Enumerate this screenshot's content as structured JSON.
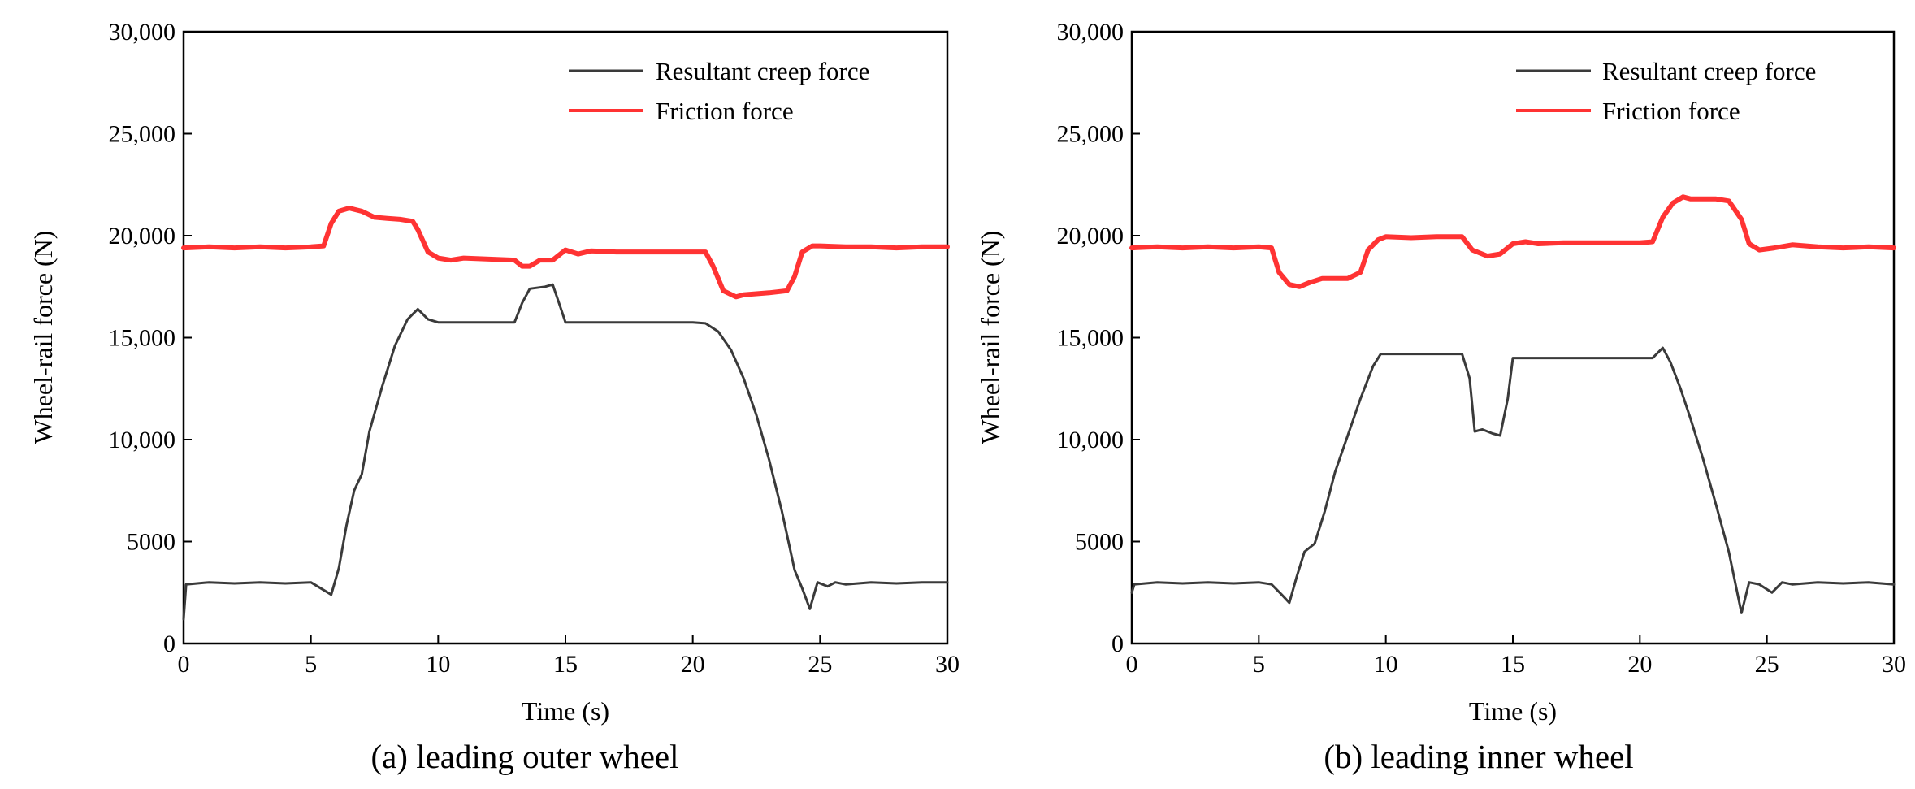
{
  "colors": {
    "creep": "#3a3a3a",
    "friction": "#ff3333",
    "axis": "#000000"
  },
  "chart_data": [
    {
      "type": "line",
      "caption": "(a) leading outer wheel",
      "xlabel": "Time (s)",
      "ylabel": "Wheel-rail force (N)",
      "xlim": [
        0,
        30
      ],
      "ylim": [
        0,
        30000
      ],
      "x_ticks": [
        0,
        5,
        10,
        15,
        20,
        25,
        30
      ],
      "x_tick_labels": [
        "0",
        "5",
        "10",
        "15",
        "20",
        "25",
        "30"
      ],
      "y_ticks": [
        0,
        5000,
        10000,
        15000,
        20000,
        25000,
        30000
      ],
      "y_tick_labels": [
        "0",
        "5000",
        "10,000",
        "15,000",
        "20,000",
        "25,000",
        "30,000"
      ],
      "legend": [
        "Resultant creep force",
        "Friction force"
      ],
      "legend_position": "top-right",
      "series": [
        {
          "name": "Resultant creep force",
          "color": "#3a3a3a",
          "points": [
            [
              0,
              1200
            ],
            [
              0.1,
              2900
            ],
            [
              1,
              3000
            ],
            [
              2,
              2950
            ],
            [
              3,
              3000
            ],
            [
              4,
              2950
            ],
            [
              5,
              3000
            ],
            [
              5.8,
              2400
            ],
            [
              6.1,
              3700
            ],
            [
              6.4,
              5800
            ],
            [
              6.7,
              7500
            ],
            [
              7,
              8300
            ],
            [
              7.3,
              10400
            ],
            [
              7.8,
              12600
            ],
            [
              8.3,
              14600
            ],
            [
              8.8,
              15900
            ],
            [
              9.2,
              16400
            ],
            [
              9.6,
              15900
            ],
            [
              10,
              15750
            ],
            [
              11,
              15750
            ],
            [
              12,
              15750
            ],
            [
              13,
              15750
            ],
            [
              13.3,
              16700
            ],
            [
              13.6,
              17400
            ],
            [
              14.2,
              17500
            ],
            [
              14.5,
              17600
            ],
            [
              14.8,
              16500
            ],
            [
              15,
              15750
            ],
            [
              16,
              15750
            ],
            [
              17,
              15750
            ],
            [
              18,
              15750
            ],
            [
              19,
              15750
            ],
            [
              20,
              15750
            ],
            [
              20.5,
              15700
            ],
            [
              21,
              15300
            ],
            [
              21.5,
              14400
            ],
            [
              22,
              13000
            ],
            [
              22.5,
              11200
            ],
            [
              23,
              9000
            ],
            [
              23.5,
              6500
            ],
            [
              24,
              3600
            ],
            [
              24.3,
              2700
            ],
            [
              24.6,
              1700
            ],
            [
              24.9,
              3000
            ],
            [
              25.3,
              2800
            ],
            [
              25.6,
              3000
            ],
            [
              26,
              2900
            ],
            [
              27,
              3000
            ],
            [
              28,
              2950
            ],
            [
              29,
              3000
            ],
            [
              30,
              3000
            ]
          ]
        },
        {
          "name": "Friction force",
          "color": "#ff3333",
          "points": [
            [
              0,
              19400
            ],
            [
              1,
              19450
            ],
            [
              2,
              19400
            ],
            [
              3,
              19450
            ],
            [
              4,
              19400
            ],
            [
              5,
              19450
            ],
            [
              5.5,
              19500
            ],
            [
              5.8,
              20600
            ],
            [
              6.1,
              21200
            ],
            [
              6.5,
              21350
            ],
            [
              7,
              21200
            ],
            [
              7.5,
              20900
            ],
            [
              8,
              20850
            ],
            [
              8.5,
              20800
            ],
            [
              9,
              20700
            ],
            [
              9.2,
              20300
            ],
            [
              9.6,
              19200
            ],
            [
              10,
              18900
            ],
            [
              10.5,
              18800
            ],
            [
              11,
              18900
            ],
            [
              12,
              18850
            ],
            [
              13,
              18800
            ],
            [
              13.3,
              18500
            ],
            [
              13.6,
              18500
            ],
            [
              14,
              18800
            ],
            [
              14.5,
              18800
            ],
            [
              15,
              19300
            ],
            [
              15.5,
              19100
            ],
            [
              16,
              19250
            ],
            [
              17,
              19200
            ],
            [
              18,
              19200
            ],
            [
              19,
              19200
            ],
            [
              20,
              19200
            ],
            [
              20.5,
              19200
            ],
            [
              20.8,
              18500
            ],
            [
              21.2,
              17300
            ],
            [
              21.7,
              17000
            ],
            [
              22,
              17100
            ],
            [
              23,
              17200
            ],
            [
              23.7,
              17300
            ],
            [
              24,
              18000
            ],
            [
              24.3,
              19200
            ],
            [
              24.7,
              19500
            ],
            [
              25,
              19500
            ],
            [
              26,
              19450
            ],
            [
              27,
              19450
            ],
            [
              28,
              19400
            ],
            [
              29,
              19450
            ],
            [
              30,
              19450
            ]
          ]
        }
      ]
    },
    {
      "type": "line",
      "caption": "(b) leading inner wheel",
      "xlabel": "Time (s)",
      "ylabel": "Wheel-rail force (N)",
      "xlim": [
        0,
        30
      ],
      "ylim": [
        0,
        30000
      ],
      "x_ticks": [
        0,
        5,
        10,
        15,
        20,
        25,
        30
      ],
      "x_tick_labels": [
        "0",
        "5",
        "10",
        "15",
        "20",
        "25",
        "30"
      ],
      "y_ticks": [
        0,
        5000,
        10000,
        15000,
        20000,
        25000,
        30000
      ],
      "y_tick_labels": [
        "0",
        "5000",
        "10,000",
        "15,000",
        "20,000",
        "25,000",
        "30,000"
      ],
      "legend": [
        "Resultant creep force",
        "Friction force"
      ],
      "legend_position": "top-right",
      "series": [
        {
          "name": "Resultant creep force",
          "color": "#3a3a3a",
          "points": [
            [
              0,
              2500
            ],
            [
              0.1,
              2900
            ],
            [
              1,
              3000
            ],
            [
              2,
              2950
            ],
            [
              3,
              3000
            ],
            [
              4,
              2950
            ],
            [
              5,
              3000
            ],
            [
              5.5,
              2900
            ],
            [
              5.9,
              2400
            ],
            [
              6.2,
              2000
            ],
            [
              6.5,
              3300
            ],
            [
              6.8,
              4500
            ],
            [
              7.2,
              4900
            ],
            [
              7.6,
              6500
            ],
            [
              8,
              8400
            ],
            [
              8.5,
              10200
            ],
            [
              9,
              12000
            ],
            [
              9.5,
              13600
            ],
            [
              9.8,
              14200
            ],
            [
              10,
              14200
            ],
            [
              11,
              14200
            ],
            [
              12,
              14200
            ],
            [
              12.5,
              14200
            ],
            [
              13,
              14200
            ],
            [
              13.3,
              13000
            ],
            [
              13.5,
              10400
            ],
            [
              13.8,
              10500
            ],
            [
              14.2,
              10300
            ],
            [
              14.5,
              10200
            ],
            [
              14.8,
              12000
            ],
            [
              15,
              14000
            ],
            [
              16,
              14000
            ],
            [
              17,
              14000
            ],
            [
              18,
              14000
            ],
            [
              19,
              14000
            ],
            [
              20,
              14000
            ],
            [
              20.5,
              14000
            ],
            [
              20.9,
              14500
            ],
            [
              21.2,
              13800
            ],
            [
              21.6,
              12500
            ],
            [
              22,
              11000
            ],
            [
              22.5,
              9000
            ],
            [
              23,
              6800
            ],
            [
              23.5,
              4500
            ],
            [
              24,
              1500
            ],
            [
              24.3,
              3000
            ],
            [
              24.7,
              2900
            ],
            [
              25.2,
              2500
            ],
            [
              25.6,
              3000
            ],
            [
              26,
              2900
            ],
            [
              27,
              3000
            ],
            [
              28,
              2950
            ],
            [
              29,
              3000
            ],
            [
              30,
              2900
            ]
          ]
        },
        {
          "name": "Friction force",
          "color": "#ff3333",
          "points": [
            [
              0,
              19400
            ],
            [
              1,
              19450
            ],
            [
              2,
              19400
            ],
            [
              3,
              19450
            ],
            [
              4,
              19400
            ],
            [
              5,
              19450
            ],
            [
              5.5,
              19400
            ],
            [
              5.8,
              18200
            ],
            [
              6.2,
              17600
            ],
            [
              6.6,
              17500
            ],
            [
              7,
              17700
            ],
            [
              7.5,
              17900
            ],
            [
              8,
              17900
            ],
            [
              8.5,
              17900
            ],
            [
              9,
              18200
            ],
            [
              9.3,
              19300
            ],
            [
              9.7,
              19800
            ],
            [
              10,
              19950
            ],
            [
              11,
              19900
            ],
            [
              12,
              19950
            ],
            [
              13,
              19950
            ],
            [
              13.4,
              19300
            ],
            [
              14,
              19000
            ],
            [
              14.5,
              19100
            ],
            [
              15,
              19600
            ],
            [
              15.5,
              19700
            ],
            [
              16,
              19600
            ],
            [
              17,
              19650
            ],
            [
              18,
              19650
            ],
            [
              19,
              19650
            ],
            [
              20,
              19650
            ],
            [
              20.5,
              19700
            ],
            [
              20.9,
              20900
            ],
            [
              21.3,
              21600
            ],
            [
              21.7,
              21900
            ],
            [
              22,
              21800
            ],
            [
              23,
              21800
            ],
            [
              23.5,
              21700
            ],
            [
              24,
              20800
            ],
            [
              24.3,
              19600
            ],
            [
              24.7,
              19300
            ],
            [
              25.3,
              19400
            ],
            [
              26,
              19550
            ],
            [
              27,
              19450
            ],
            [
              28,
              19400
            ],
            [
              29,
              19450
            ],
            [
              30,
              19400
            ]
          ]
        }
      ]
    }
  ]
}
